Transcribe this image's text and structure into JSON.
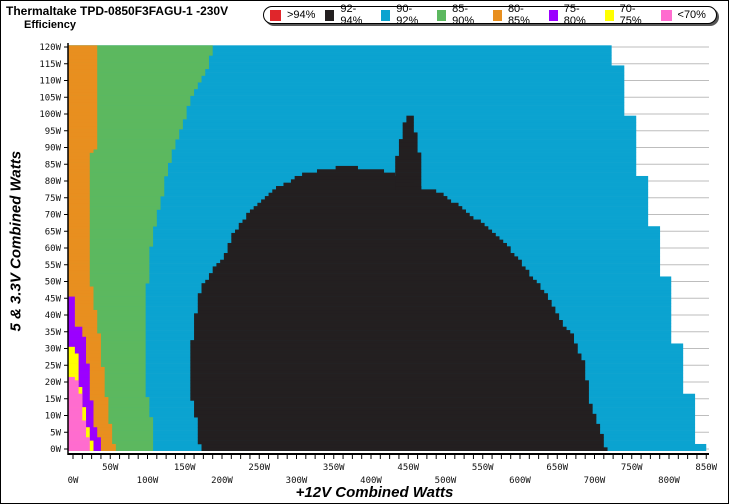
{
  "chart_data": {
    "type": "heatmap",
    "title": "Thermaltake TPD-0850F3FAGU-1 -230V",
    "subtitle": "Efficiency",
    "xlabel": "+12V Combined Watts",
    "ylabel": "5 & 3.3V Combined Watts",
    "xlim": [
      0,
      850
    ],
    "ylim": [
      0,
      120
    ],
    "x_ticks": [
      "0W",
      "50W",
      "100W",
      "150W",
      "200W",
      "250W",
      "300W",
      "350W",
      "400W",
      "450W",
      "500W",
      "550W",
      "600W",
      "650W",
      "700W",
      "750W",
      "800W",
      "850W"
    ],
    "y_ticks": [
      "0W",
      "5W",
      "10W",
      "15W",
      "20W",
      "25W",
      "30W",
      "35W",
      "40W",
      "45W",
      "50W",
      "55W",
      "60W",
      "65W",
      "70W",
      "75W",
      "80W",
      "85W",
      "90W",
      "95W",
      "100W",
      "105W",
      "110W",
      "115W",
      "120W"
    ],
    "grid": true,
    "legend_position": "top",
    "legend": [
      {
        "label": ">94%",
        "color": "#e0262b"
      },
      {
        "label": "92-94%",
        "color": "#231f20"
      },
      {
        "label": "90-92%",
        "color": "#0ba3d0"
      },
      {
        "label": "85-90%",
        "color": "#5cb85f"
      },
      {
        "label": "80-85%",
        "color": "#e88f1f"
      },
      {
        "label": "75-80%",
        "color": "#9b00ff"
      },
      {
        "label": "70-75%",
        "color": "#ffff00"
      },
      {
        "label": "<70%",
        "color": "#ff6ccf"
      }
    ],
    "regions": [
      {
        "band": "90-92%",
        "color": "#0ba3d0",
        "y_range": [
          0,
          120
        ],
        "right_edge_steps": [
          [
            0,
            1,
            850
          ],
          [
            2,
            16,
            835
          ],
          [
            17,
            31,
            819
          ],
          [
            32,
            51,
            803
          ],
          [
            52,
            66,
            788
          ],
          [
            67,
            81,
            772
          ],
          [
            82,
            99,
            756
          ],
          [
            100,
            114,
            740
          ],
          [
            115,
            120,
            723
          ]
        ]
      },
      {
        "band": "85-90%",
        "color": "#5cb85f",
        "y_range": [
          0,
          120
        ],
        "right_edge": [
          [
            0,
            111
          ],
          [
            5,
            111
          ],
          [
            10,
            107
          ],
          [
            15,
            103
          ],
          [
            20,
            99
          ],
          [
            40,
            99
          ],
          [
            45,
            100
          ],
          [
            50,
            103
          ],
          [
            55,
            107
          ],
          [
            60,
            107
          ],
          [
            65,
            111
          ],
          [
            70,
            115
          ],
          [
            75,
            122
          ],
          [
            80,
            126
          ],
          [
            85,
            132
          ],
          [
            90,
            138
          ],
          [
            95,
            147
          ],
          [
            100,
            154
          ],
          [
            105,
            162
          ],
          [
            110,
            174
          ],
          [
            115,
            186
          ],
          [
            120,
            189
          ]
        ]
      },
      {
        "band": "80-85%",
        "color": "#e88f1f",
        "y_range": [
          0,
          120
        ],
        "right_edge": [
          [
            0,
            59
          ],
          [
            7,
            53
          ],
          [
            12,
            50
          ],
          [
            17,
            46
          ],
          [
            27,
            41
          ],
          [
            35,
            37
          ],
          [
            40,
            33
          ],
          [
            45,
            31
          ],
          [
            50,
            26
          ],
          [
            88,
            26
          ],
          [
            90,
            34
          ],
          [
            120,
            34
          ]
        ]
      },
      {
        "band": "75-80%",
        "color": "#9b00ff",
        "y_range": [
          0,
          45
        ],
        "right_edge": [
          [
            0,
            42
          ],
          [
            7,
            32
          ],
          [
            12,
            29
          ],
          [
            17,
            26
          ],
          [
            25,
            23
          ],
          [
            30,
            20
          ],
          [
            36,
            16
          ],
          [
            37,
            7
          ],
          [
            45,
            7
          ]
        ]
      },
      {
        "band": "70-75%",
        "color": "#ffff00",
        "y_range": [
          0,
          30
        ],
        "right_edge": [
          [
            0,
            30
          ],
          [
            7,
            22
          ],
          [
            12,
            18
          ],
          [
            17,
            14
          ],
          [
            22,
            10
          ],
          [
            30,
            7
          ]
        ]
      },
      {
        "band": "<70%",
        "color": "#ff6ccf",
        "y_range": [
          0,
          21
        ],
        "right_edge": [
          [
            0,
            26
          ],
          [
            7,
            19
          ],
          [
            12,
            15
          ],
          [
            17,
            12
          ],
          [
            21,
            7
          ]
        ]
      },
      {
        "band": "92-94%",
        "color": "#231f20",
        "y_range": [
          0,
          84
        ],
        "left_edge": [
          [
            0,
            174
          ],
          [
            5,
            170
          ],
          [
            12,
            166
          ],
          [
            15,
            162
          ],
          [
            32,
            162
          ],
          [
            38,
            166
          ],
          [
            45,
            170
          ],
          [
            50,
            178
          ],
          [
            52,
            187
          ],
          [
            55,
            195
          ],
          [
            57,
            203
          ],
          [
            60,
            211
          ],
          [
            64,
            216
          ],
          [
            71,
            241
          ],
          [
            78,
            276
          ],
          [
            82,
            310
          ],
          [
            84,
            353
          ]
        ],
        "right_edge": [
          [
            0,
            718
          ],
          [
            2,
            715
          ],
          [
            6,
            710
          ],
          [
            11,
            702
          ],
          [
            16,
            694
          ],
          [
            25,
            691
          ],
          [
            29,
            682
          ],
          [
            34,
            673
          ],
          [
            36,
            664
          ],
          [
            40,
            655
          ],
          [
            45,
            642
          ],
          [
            54,
            610
          ],
          [
            60,
            588
          ],
          [
            66,
            561
          ],
          [
            70,
            534
          ],
          [
            74,
            512
          ],
          [
            77,
            491
          ],
          [
            78,
            470
          ],
          [
            82,
            437
          ],
          [
            83,
            420
          ],
          [
            84,
            387
          ]
        ]
      },
      {
        "band": "92-94%",
        "color": "#231f20",
        "y_range": [
          78,
          99
        ],
        "left_edge": [
          [
            78,
            437
          ],
          [
            87,
            437
          ],
          [
            92,
            442
          ],
          [
            99,
            449
          ]
        ],
        "right_edge": [
          [
            78,
            470
          ],
          [
            84,
            470
          ],
          [
            89,
            467
          ],
          [
            94,
            463
          ],
          [
            99,
            458
          ]
        ]
      }
    ]
  }
}
